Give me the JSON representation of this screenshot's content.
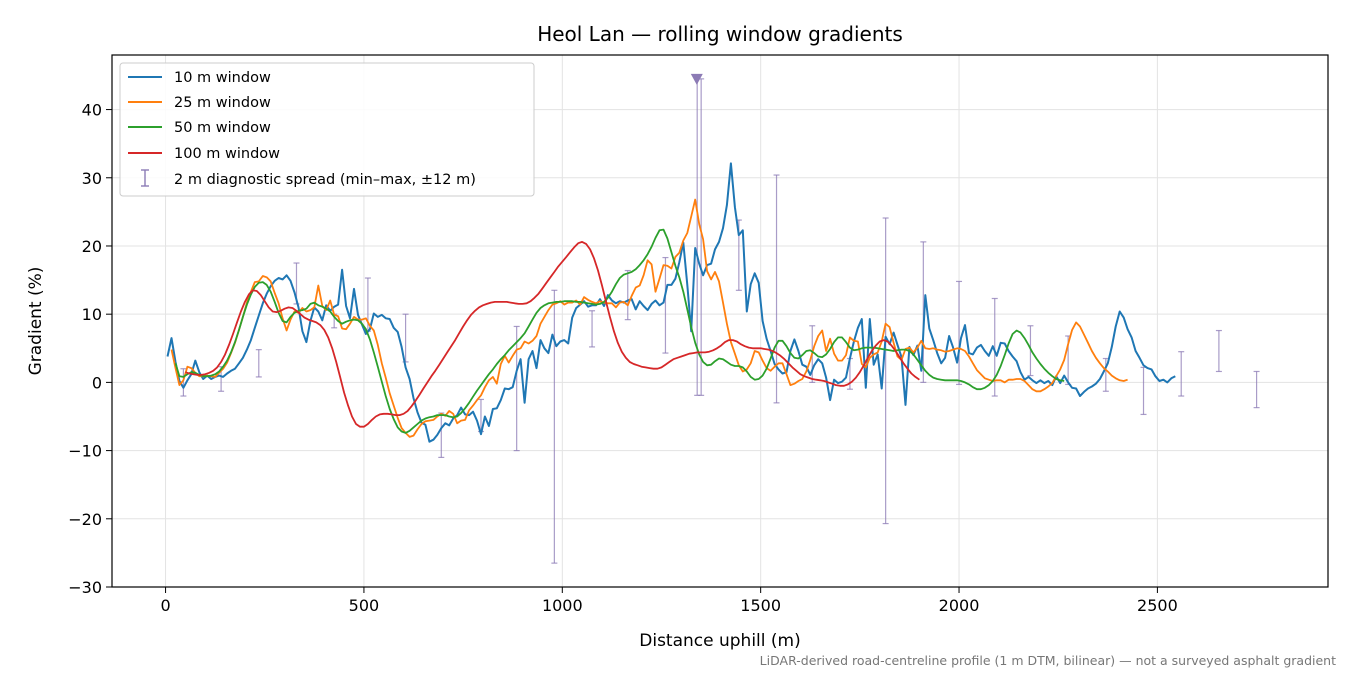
{
  "chart_data": {
    "type": "line",
    "title": "Heol Lan — rolling window gradients",
    "xlabel": "Distance uphill (m)",
    "ylabel": "Gradient (%)",
    "footnote": "LiDAR-derived road-centreline profile (1 m DTM, bilinear) — not a surveyed asphalt gradient",
    "xlim": [
      -135,
      2930
    ],
    "ylim": [
      -30,
      48
    ],
    "xticks": [
      0,
      500,
      1000,
      1500,
      2000,
      2500
    ],
    "yticks": [
      -30,
      -20,
      -10,
      0,
      10,
      20,
      30,
      40
    ],
    "xtick_labels": [
      "0",
      "500",
      "1000",
      "1500",
      "2000",
      "2500"
    ],
    "ytick_labels": [
      "−30",
      "−20",
      "−10",
      "0",
      "10",
      "20",
      "30",
      "40"
    ],
    "grid": true,
    "legend_position": "upper-left",
    "x_step": 10,
    "series": [
      {
        "name": "10 m window",
        "color": "#1f77b4",
        "x_start": 5,
        "values": [
          3.8,
          6.5,
          3.0,
          0.2,
          -0.8,
          0.3,
          1.2,
          3.2,
          1.5,
          0.5,
          1.0,
          0.5,
          0.8,
          1.0,
          0.8,
          1.3,
          1.7,
          2.0,
          2.8,
          3.6,
          4.8,
          6.2,
          8.0,
          9.8,
          11.6,
          13.0,
          14.1,
          14.9,
          15.3,
          15.1,
          15.7,
          14.9,
          13.2,
          11.0,
          7.5,
          5.9,
          9.0,
          11.0,
          10.4,
          9.1,
          11.3,
          10.5,
          11.1,
          11.4,
          16.5,
          11.2,
          9.4,
          13.7,
          9.9,
          8.5,
          7.1,
          7.8,
          10.1,
          9.6,
          9.9,
          9.4,
          9.3,
          8.0,
          7.4,
          5.2,
          2.2,
          0.5,
          -2.3,
          -4.4,
          -5.9,
          -6.2,
          -8.7,
          -8.4,
          -7.7,
          -6.7,
          -6.0,
          -6.3,
          -5.3,
          -4.8,
          -3.7,
          -4.7,
          -4.8,
          -4.3,
          -5.6,
          -7.6,
          -5.0,
          -6.4,
          -3.9,
          -3.8,
          -2.6,
          -0.9,
          -1.0,
          -0.7,
          1.7,
          3.4,
          -3.0,
          3.4,
          4.6,
          2.1,
          6.2,
          5.0,
          4.3,
          7.0,
          5.3,
          6.0,
          6.2,
          5.7,
          9.5,
          10.9,
          11.4,
          11.9,
          11.1,
          11.3,
          11.3,
          12.2,
          11.2,
          12.8,
          12.0,
          11.6,
          11.9,
          11.7,
          12.0,
          12.2,
          10.7,
          11.9,
          11.2,
          10.6,
          11.5,
          12.0,
          11.3,
          11.7,
          14.3,
          14.3,
          15.2,
          17.6,
          20.5,
          14.3,
          7.5,
          19.7,
          17.4,
          15.7,
          17.2,
          17.4,
          19.5,
          20.6,
          22.6,
          26.0,
          32.1,
          25.7,
          21.6,
          22.3,
          10.4,
          14.4,
          16.0,
          14.6,
          9.0,
          6.4,
          4.6,
          2.7,
          1.9,
          1.3,
          1.5,
          4.6,
          6.3,
          4.6,
          2.6,
          2.3,
          1.1,
          2.5,
          3.4,
          2.8,
          0.7,
          -2.6,
          0.4,
          -0.1,
          0.1,
          0.7,
          3.5,
          6.0,
          8.0,
          9.3,
          -0.8,
          9.3,
          2.6,
          4.1,
          -0.9,
          6.7,
          5.6,
          7.3,
          5.5,
          3.7,
          -3.3,
          5.2,
          4.0,
          5.4,
          1.7,
          12.8,
          7.9,
          6.2,
          4.3,
          2.8,
          3.6,
          6.8,
          5.1,
          2.9,
          6.5,
          8.4,
          4.3,
          4.1,
          5.1,
          5.5,
          4.6,
          3.9,
          5.3,
          3.9,
          5.8,
          5.7,
          4.6,
          3.8,
          3.1,
          1.5,
          0.4,
          0.8,
          0.3,
          -0.1,
          0.3,
          -0.1,
          0.2,
          -0.4,
          0.9,
          -0.1,
          1.0,
          0.0,
          -0.8,
          -0.9,
          -2.0,
          -1.4,
          -0.9,
          -0.6,
          -0.2,
          0.5,
          1.6,
          2.8,
          5.2,
          8.2,
          10.4,
          9.5,
          7.8,
          6.6,
          4.6,
          3.6,
          2.5,
          2.1,
          1.9,
          0.9,
          0.2,
          0.4,
          0.0,
          0.6,
          0.9
        ]
      },
      {
        "name": "25 m window",
        "color": "#ff7f0e",
        "x_start": 15,
        "values": [
          4.8,
          2.1,
          -0.4,
          0.3,
          2.3,
          2.1,
          1.4,
          0.9,
          0.9,
          1.0,
          0.9,
          0.8,
          1.4,
          2.0,
          2.9,
          4.3,
          5.8,
          7.7,
          9.6,
          11.7,
          13.3,
          14.7,
          14.8,
          15.6,
          15.4,
          14.8,
          13.1,
          11.6,
          9.4,
          7.6,
          9.2,
          10.4,
          10.2,
          10.9,
          10.4,
          10.6,
          11.0,
          14.2,
          11.2,
          10.6,
          12.0,
          9.9,
          9.7,
          7.9,
          7.8,
          8.6,
          9.6,
          9.2,
          9.2,
          9.4,
          8.3,
          7.6,
          5.5,
          2.8,
          0.7,
          -1.6,
          -3.4,
          -5.2,
          -6.7,
          -7.4,
          -8.0,
          -7.8,
          -6.9,
          -6.1,
          -5.7,
          -5.6,
          -5.5,
          -5.0,
          -4.6,
          -4.9,
          -4.2,
          -4.6,
          -6.0,
          -5.6,
          -5.5,
          -4.1,
          -3.4,
          -2.6,
          -1.9,
          -0.7,
          0.3,
          0.8,
          -0.2,
          2.7,
          3.9,
          2.9,
          3.9,
          4.8,
          5.0,
          6.0,
          5.7,
          6.1,
          6.8,
          8.6,
          9.6,
          10.6,
          11.4,
          11.6,
          11.9,
          11.4,
          11.7,
          11.7,
          12.0,
          11.4,
          12.5,
          12.1,
          11.8,
          11.6,
          11.9,
          11.7,
          11.6,
          11.6,
          11.0,
          11.7,
          11.8,
          11.3,
          12.7,
          13.9,
          14.2,
          15.7,
          17.9,
          17.3,
          13.3,
          15.2,
          17.2,
          17.1,
          16.7,
          18.4,
          19.0,
          20.8,
          21.9,
          24.3,
          26.8,
          23.2,
          21.0,
          16.3,
          15.1,
          16.2,
          14.8,
          11.7,
          8.6,
          5.9,
          4.2,
          2.5,
          1.6,
          1.9,
          2.8,
          4.6,
          4.4,
          3.2,
          2.1,
          1.7,
          2.3,
          2.8,
          2.8,
          1.2,
          -0.4,
          -0.2,
          0.2,
          0.5,
          1.6,
          3.3,
          5.3,
          6.8,
          7.6,
          4.6,
          6.4,
          4.2,
          3.2,
          3.2,
          4.0,
          6.6,
          6.1,
          6.0,
          2.7,
          2.2,
          3.6,
          4.1,
          4.4,
          6.0,
          8.6,
          8.1,
          5.8,
          3.8,
          3.3,
          4.9,
          5.1,
          4.4,
          5.1,
          6.1,
          5.0,
          4.9,
          5.0,
          4.8,
          4.7,
          4.5,
          4.6,
          4.8,
          5.0,
          4.9,
          4.6,
          3.8,
          2.8,
          1.8,
          1.2,
          0.6,
          0.4,
          0.2,
          0.3,
          0.3,
          0.0,
          0.4,
          0.4,
          0.5,
          0.5,
          0.2,
          -0.4,
          -1.0,
          -1.3,
          -1.3,
          -1.0,
          -0.6,
          -0.1,
          0.9,
          1.9,
          3.3,
          5.6,
          7.7,
          8.8,
          8.2,
          7.0,
          5.8,
          4.6,
          3.6,
          2.8,
          2.1,
          1.6,
          1.0,
          0.6,
          0.3,
          0.2,
          0.4
        ]
      },
      {
        "name": "50 m window",
        "color": "#2ca02c",
        "x_start": 25,
        "values": [
          2.8,
          0.9,
          0.8,
          1.2,
          1.5,
          1.4,
          1.1,
          0.9,
          0.9,
          1.0,
          1.2,
          1.6,
          2.3,
          3.2,
          4.4,
          5.9,
          7.7,
          9.6,
          11.4,
          12.9,
          14.0,
          14.6,
          14.7,
          14.3,
          13.3,
          11.8,
          10.2,
          9.0,
          8.8,
          9.6,
          10.2,
          10.5,
          10.6,
          10.8,
          11.5,
          11.7,
          11.3,
          11.1,
          10.8,
          10.4,
          9.6,
          9.0,
          8.6,
          8.9,
          9.1,
          9.2,
          9.1,
          8.6,
          7.8,
          6.3,
          4.4,
          2.3,
          0.1,
          -2.0,
          -3.9,
          -5.4,
          -6.6,
          -7.2,
          -7.4,
          -7.1,
          -6.6,
          -6.1,
          -5.6,
          -5.3,
          -5.1,
          -5.0,
          -4.8,
          -4.8,
          -4.8,
          -5.0,
          -5.1,
          -5.0,
          -4.5,
          -3.8,
          -3.0,
          -2.1,
          -1.2,
          -0.4,
          0.4,
          1.2,
          1.9,
          2.7,
          3.4,
          4.0,
          4.7,
          5.3,
          5.9,
          6.5,
          7.2,
          8.2,
          9.2,
          10.2,
          10.9,
          11.3,
          11.6,
          11.7,
          11.8,
          11.8,
          11.9,
          11.9,
          11.9,
          11.8,
          11.8,
          11.7,
          11.6,
          11.5,
          11.4,
          11.5,
          11.8,
          12.4,
          13.3,
          14.4,
          15.3,
          15.8,
          16.0,
          16.2,
          16.6,
          17.2,
          17.9,
          18.8,
          19.9,
          21.2,
          22.3,
          22.4,
          21.1,
          19.1,
          17.1,
          15.4,
          13.3,
          10.7,
          8.1,
          5.8,
          4.1,
          3.0,
          2.5,
          2.6,
          3.1,
          3.5,
          3.4,
          3.0,
          2.6,
          2.4,
          2.4,
          2.2,
          1.6,
          0.8,
          0.4,
          0.5,
          1.0,
          2.0,
          3.5,
          5.1,
          6.1,
          6.1,
          5.3,
          4.3,
          3.6,
          3.5,
          4.0,
          4.6,
          4.7,
          4.3,
          3.8,
          3.7,
          4.1,
          4.9,
          5.9,
          6.6,
          6.6,
          5.9,
          5.1,
          4.7,
          4.8,
          5.0,
          5.1,
          5.1,
          5.1,
          5.0,
          4.9,
          4.8,
          4.7,
          4.6,
          4.7,
          4.8,
          4.8,
          4.6,
          4.1,
          3.3,
          2.5,
          1.7,
          1.1,
          0.7,
          0.5,
          0.4,
          0.3,
          0.3,
          0.3,
          0.3,
          0.2,
          0.0,
          -0.3,
          -0.7,
          -1.0,
          -1.0,
          -0.8,
          -0.4,
          0.2,
          1.1,
          2.4,
          4.0,
          5.7,
          7.1,
          7.6,
          7.3,
          6.5,
          5.5,
          4.4,
          3.5,
          2.7,
          2.0,
          1.4,
          0.9,
          0.5,
          0.3,
          0.2
        ]
      },
      {
        "name": "100 m window",
        "color": "#d62728",
        "x_start": 50,
        "values": [
          1.5,
          1.3,
          1.2,
          1.1,
          1.1,
          1.2,
          1.4,
          1.7,
          2.2,
          3.0,
          4.1,
          5.5,
          7.1,
          8.8,
          10.4,
          11.8,
          12.9,
          13.5,
          13.4,
          12.8,
          11.9,
          11.0,
          10.4,
          10.3,
          10.5,
          10.8,
          11.0,
          10.9,
          10.5,
          10.0,
          9.5,
          9.2,
          9.0,
          8.8,
          8.4,
          7.7,
          6.6,
          5.0,
          3.0,
          0.8,
          -1.5,
          -3.4,
          -5.0,
          -6.1,
          -6.5,
          -6.5,
          -6.1,
          -5.5,
          -5.0,
          -4.7,
          -4.6,
          -4.6,
          -4.7,
          -4.8,
          -4.8,
          -4.6,
          -4.2,
          -3.5,
          -2.7,
          -1.8,
          -0.9,
          0.0,
          0.9,
          1.7,
          2.6,
          3.5,
          4.4,
          5.3,
          6.2,
          7.2,
          8.2,
          9.1,
          9.9,
          10.5,
          11.0,
          11.3,
          11.5,
          11.7,
          11.8,
          11.8,
          11.8,
          11.8,
          11.7,
          11.6,
          11.5,
          11.5,
          11.6,
          11.9,
          12.4,
          13.0,
          13.8,
          14.6,
          15.4,
          16.2,
          17.0,
          17.7,
          18.4,
          19.1,
          19.8,
          20.4,
          20.6,
          20.3,
          19.5,
          18.2,
          16.4,
          14.2,
          11.9,
          9.6,
          7.5,
          5.8,
          4.5,
          3.6,
          3.0,
          2.7,
          2.5,
          2.3,
          2.2,
          2.1,
          2.0,
          2.0,
          2.2,
          2.6,
          3.0,
          3.4,
          3.6,
          3.8,
          4.0,
          4.2,
          4.3,
          4.4,
          4.4,
          4.4,
          4.5,
          4.7,
          5.0,
          5.4,
          5.9,
          6.2,
          6.2,
          6.0,
          5.6,
          5.3,
          5.1,
          5.0,
          5.0,
          5.0,
          4.9,
          4.8,
          4.6,
          4.3,
          3.9,
          3.4,
          2.8,
          2.2,
          1.7,
          1.2,
          0.9,
          0.7,
          0.5,
          0.4,
          0.3,
          0.2,
          0.0,
          -0.2,
          -0.4,
          -0.5,
          -0.5,
          -0.3,
          0.1,
          0.7,
          1.5,
          2.5,
          3.6,
          4.6,
          5.4,
          6.0,
          6.2,
          6.0,
          5.4,
          4.6,
          3.7,
          2.8,
          2.0,
          1.3,
          0.8,
          0.4
        ]
      }
    ],
    "spread": {
      "name": "2 m diagnostic spread (min–max, ±12 m)",
      "color": "#8c7bb5",
      "clipped_marker_at": 44.5,
      "x": [
        45,
        140,
        235,
        330,
        425,
        510,
        605,
        695,
        795,
        885,
        980,
        1075,
        1165,
        1260,
        1340,
        1350,
        1445,
        1540,
        1630,
        1725,
        1815,
        1910,
        2000,
        2090,
        2180,
        2275,
        2370,
        2465,
        2560,
        2655,
        2750
      ],
      "ymin": [
        -2.0,
        -1.3,
        0.8,
        11.5,
        8.0,
        7.5,
        3.0,
        -11.0,
        -7.2,
        -10.0,
        -26.5,
        5.2,
        9.2,
        4.3,
        -1.9,
        -1.9,
        13.5,
        -3.0,
        0.0,
        -1.0,
        -20.7,
        0.0,
        -0.3,
        -2.0,
        1.0,
        -0.3,
        -1.3,
        -4.7,
        -2.0,
        1.6,
        -3.7
      ],
      "ymax": [
        2.0,
        2.3,
        4.8,
        17.5,
        10.0,
        15.3,
        10.0,
        -4.5,
        -2.5,
        8.2,
        13.5,
        10.5,
        16.4,
        18.3,
        44.5,
        44.5,
        23.8,
        30.4,
        8.3,
        3.5,
        24.1,
        20.6,
        14.8,
        12.3,
        8.3,
        6.8,
        3.5,
        2.2,
        4.5,
        7.6,
        1.6
      ]
    }
  }
}
